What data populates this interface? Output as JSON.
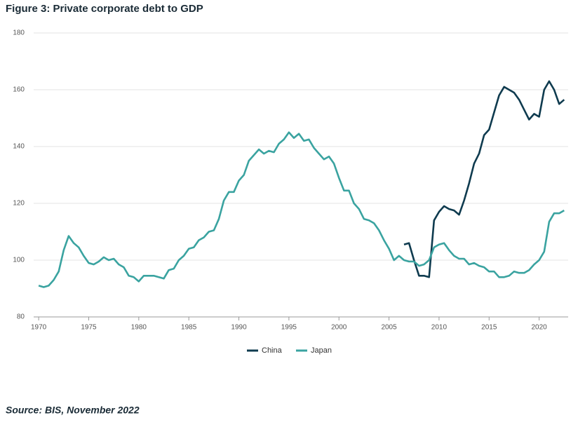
{
  "chart_data": {
    "type": "line",
    "title": "Figure 3: Private corporate debt to GDP",
    "source": "Source: BIS, November 2022",
    "x": [
      1970,
      1970.5,
      1971,
      1971.5,
      1972,
      1972.5,
      1973,
      1973.5,
      1974,
      1974.5,
      1975,
      1975.5,
      1976,
      1976.5,
      1977,
      1977.5,
      1978,
      1978.5,
      1979,
      1979.5,
      1980,
      1980.5,
      1981,
      1981.5,
      1982,
      1982.5,
      1983,
      1983.5,
      1984,
      1984.5,
      1985,
      1985.5,
      1986,
      1986.5,
      1987,
      1987.5,
      1988,
      1988.5,
      1989,
      1989.5,
      1990,
      1990.5,
      1991,
      1991.5,
      1992,
      1992.5,
      1993,
      1993.5,
      1994,
      1994.5,
      1995,
      1995.5,
      1996,
      1996.5,
      1997,
      1997.5,
      1998,
      1998.5,
      1999,
      1999.5,
      2000,
      2000.5,
      2001,
      2001.5,
      2002,
      2002.5,
      2003,
      2003.5,
      2004,
      2004.5,
      2005,
      2005.5,
      2006,
      2006.5,
      2007,
      2007.5,
      2008,
      2008.5,
      2009,
      2009.5,
      2010,
      2010.5,
      2011,
      2011.5,
      2012,
      2012.5,
      2013,
      2013.5,
      2014,
      2014.5,
      2015,
      2015.5,
      2016,
      2016.5,
      2017,
      2017.5,
      2018,
      2018.5,
      2019,
      2019.5,
      2020,
      2020.5,
      2021,
      2021.5,
      2022,
      2022.5
    ],
    "series": [
      {
        "name": "China",
        "color": "#0f3b4f",
        "values": [
          null,
          null,
          null,
          null,
          null,
          null,
          null,
          null,
          null,
          null,
          null,
          null,
          null,
          null,
          null,
          null,
          null,
          null,
          null,
          null,
          null,
          null,
          null,
          null,
          null,
          null,
          null,
          null,
          null,
          null,
          null,
          null,
          null,
          null,
          null,
          null,
          null,
          null,
          null,
          null,
          null,
          null,
          null,
          null,
          null,
          null,
          null,
          null,
          null,
          null,
          null,
          null,
          null,
          null,
          null,
          null,
          null,
          null,
          null,
          null,
          null,
          null,
          null,
          null,
          null,
          null,
          null,
          null,
          null,
          null,
          null,
          null,
          null,
          105.5,
          106,
          100,
          94.5,
          94.5,
          94,
          114,
          117,
          119,
          118,
          117.5,
          116,
          121,
          127,
          134,
          137.5,
          144,
          146,
          152,
          158,
          161,
          160,
          159,
          156.5,
          153,
          149.5,
          151.5,
          150.5,
          160,
          163,
          160,
          155,
          156.5
        ]
      },
      {
        "name": "Japan",
        "color": "#3aa3a0",
        "values": [
          91,
          90.5,
          91,
          93,
          96,
          103.5,
          108.5,
          106,
          104.5,
          101.5,
          99,
          98.5,
          99.5,
          101,
          100,
          100.5,
          98.5,
          97.5,
          94.5,
          94,
          92.5,
          94.5,
          94.5,
          94.5,
          94,
          93.5,
          96.5,
          97,
          100,
          101.5,
          104,
          104.5,
          107,
          108,
          110,
          110.5,
          114.5,
          121,
          124,
          124,
          128,
          130,
          135,
          137,
          139,
          137.5,
          138.5,
          138,
          141,
          142.5,
          145,
          143,
          144.5,
          142,
          142.5,
          139.5,
          137.5,
          135.5,
          136.5,
          134,
          129,
          124.5,
          124.5,
          120,
          118,
          114.5,
          114,
          113,
          110.5,
          107,
          104,
          100,
          101.5,
          100,
          99.5,
          99.5,
          98,
          98.5,
          100,
          104.5,
          105.5,
          106,
          103.5,
          101.5,
          100.5,
          100.5,
          98.5,
          99,
          98,
          97.5,
          96,
          96,
          94,
          94,
          94.5,
          96,
          95.5,
          95.5,
          96.5,
          98.5,
          100,
          103,
          113.5,
          116.5,
          116.5,
          117.5
        ]
      }
    ],
    "xlim": [
      1969.5,
      2022.9
    ],
    "xticks": [
      1970,
      1975,
      1980,
      1985,
      1990,
      1995,
      2000,
      2005,
      2010,
      2015,
      2020
    ],
    "ylim": [
      80,
      180
    ],
    "yticks": [
      80,
      100,
      120,
      140,
      160,
      180
    ],
    "grid": true,
    "legend": "bottom"
  }
}
